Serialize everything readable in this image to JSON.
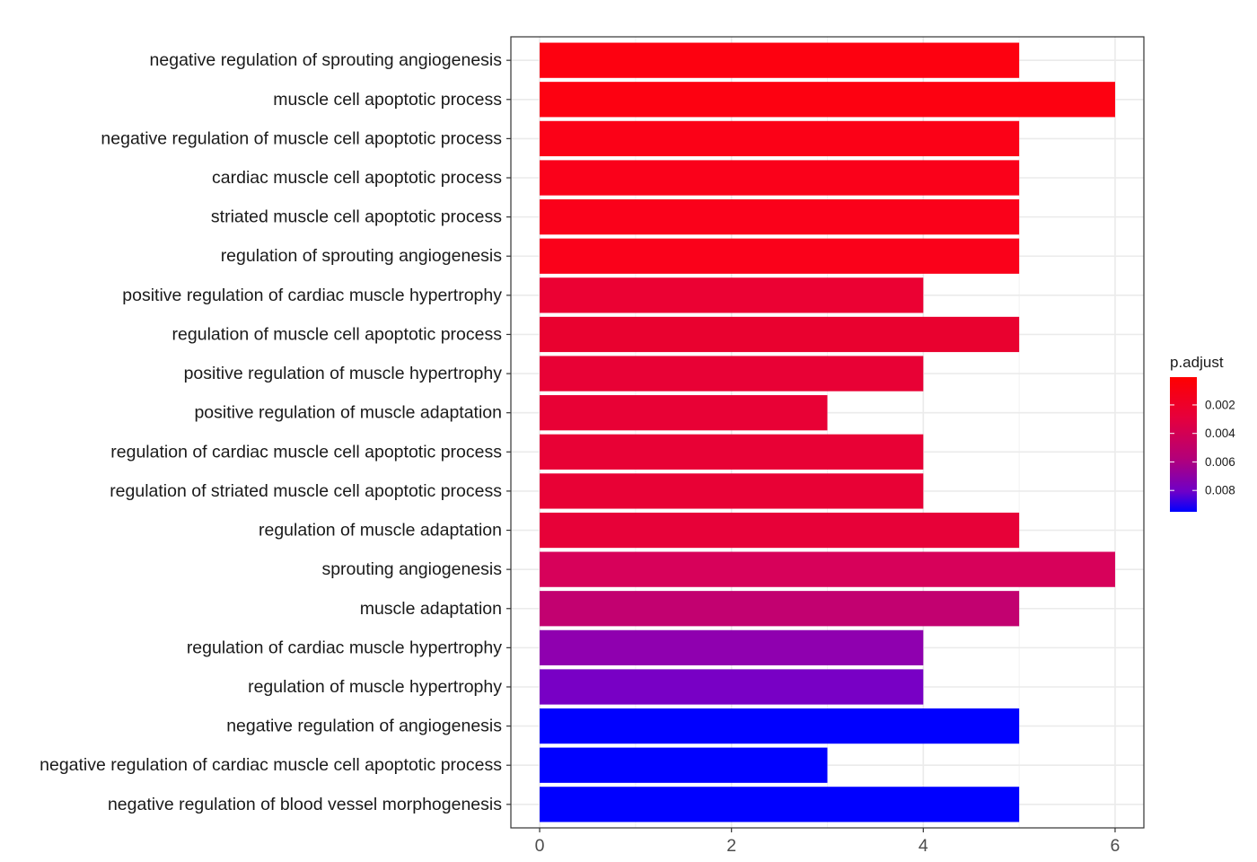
{
  "chart_data": {
    "type": "bar",
    "orientation": "horizontal",
    "title": "",
    "xlabel": "",
    "ylabel": "",
    "xlim": [
      -0.3,
      6.3
    ],
    "x_ticks": [
      0,
      2,
      4,
      6
    ],
    "grid": true,
    "theme": "bw",
    "categories": [
      "negative regulation of sprouting angiogenesis",
      "muscle cell apoptotic process",
      "negative regulation of muscle cell apoptotic process",
      "cardiac muscle cell apoptotic process",
      "striated muscle cell apoptotic process",
      "regulation of sprouting angiogenesis",
      "positive regulation of cardiac muscle hypertrophy",
      "regulation of muscle cell apoptotic process",
      "positive regulation of muscle hypertrophy",
      "positive regulation of muscle adaptation",
      "regulation of cardiac muscle cell apoptotic process",
      "regulation of striated muscle cell apoptotic process",
      "regulation of muscle adaptation",
      "sprouting angiogenesis",
      "muscle adaptation",
      "regulation of cardiac muscle hypertrophy",
      "regulation of muscle hypertrophy",
      "negative regulation of angiogenesis",
      "negative regulation of cardiac muscle cell apoptotic process",
      "negative regulation of blood vessel morphogenesis"
    ],
    "values": [
      5,
      6,
      5,
      5,
      5,
      5,
      4,
      5,
      4,
      3,
      4,
      4,
      5,
      6,
      5,
      4,
      4,
      5,
      3,
      5
    ],
    "p_adjust": [
      5e-05,
      5e-05,
      0.00012,
      0.0002,
      0.0002,
      0.0002,
      0.00075,
      0.0008,
      0.0009,
      0.0009,
      0.0009,
      0.0009,
      0.0009,
      0.0017,
      0.0029,
      0.0065,
      0.0073,
      0.0095,
      0.0095,
      0.0095
    ],
    "bar_colors": [
      "#FD0110",
      "#FD0111",
      "#FB0117",
      "#FA011A",
      "#FA011A",
      "#FA011A",
      "#EB0133",
      "#E9012F",
      "#E80135",
      "#E80135",
      "#E80135",
      "#E80135",
      "#E70138",
      "#D7015A",
      "#C20170",
      "#8F00AF",
      "#7800C5",
      "#0000FF",
      "#0000FF",
      "#0000FF"
    ],
    "legend": {
      "title": "p.adjust",
      "position": "right",
      "ticks": [
        0.002,
        0.004,
        0.006,
        0.008
      ],
      "tick_labels": [
        "0.002",
        "0.004",
        "0.006",
        "0.008"
      ],
      "range": [
        5e-05,
        0.0095
      ],
      "low_color": "#FF0000",
      "high_color": "#0000FF"
    }
  }
}
